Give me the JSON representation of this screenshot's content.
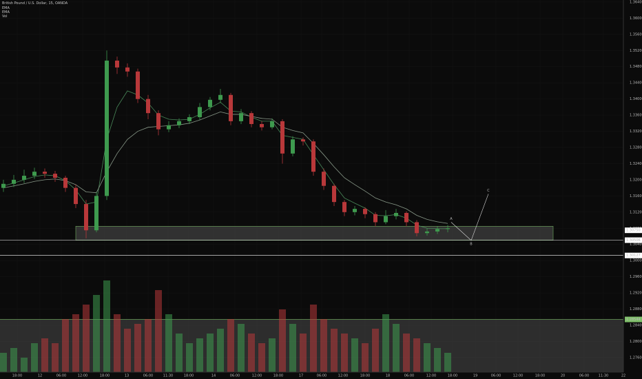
{
  "chart_data": {
    "type": "candlestick",
    "title": "British Pound / U.S. Dollar, 15, OANDA",
    "indicators": [
      "EMA",
      "EMA",
      "Vol"
    ],
    "open": [
      1.318,
      1.319,
      1.32,
      1.321,
      1.322,
      1.3215,
      1.3205,
      1.318,
      1.314,
      1.3075,
      1.316,
      1.3495,
      1.3478,
      1.3468,
      1.34,
      1.3365,
      1.3325,
      1.3335,
      1.3345,
      1.3355,
      1.338,
      1.3398,
      1.341,
      1.3345,
      1.3365,
      1.3338,
      1.333,
      1.3345,
      1.3265,
      1.33,
      1.3295,
      1.322,
      1.3185,
      1.3145,
      1.312,
      1.3128,
      1.3115,
      1.3095,
      1.311,
      1.3118,
      1.3095,
      1.3068,
      1.3072,
      1.3078
    ],
    "high": [
      1.32,
      1.3212,
      1.3225,
      1.323,
      1.3228,
      1.3222,
      1.321,
      1.3188,
      1.315,
      1.317,
      1.352,
      1.3505,
      1.3488,
      1.3475,
      1.341,
      1.3372,
      1.3345,
      1.3352,
      1.3362,
      1.339,
      1.3405,
      1.3425,
      1.3415,
      1.3375,
      1.337,
      1.3345,
      1.3352,
      1.335,
      1.3308,
      1.3305,
      1.33,
      1.3228,
      1.319,
      1.315,
      1.3135,
      1.3132,
      1.312,
      1.3125,
      1.3128,
      1.3122,
      1.31,
      1.308,
      1.3085,
      1.3088
    ],
    "low": [
      1.317,
      1.3182,
      1.3192,
      1.3202,
      1.3205,
      1.3195,
      1.317,
      1.313,
      1.3055,
      1.307,
      1.315,
      1.3462,
      1.3455,
      1.339,
      1.335,
      1.331,
      1.3318,
      1.3328,
      1.3338,
      1.3348,
      1.3372,
      1.339,
      1.3335,
      1.3338,
      1.333,
      1.3322,
      1.3325,
      1.324,
      1.3258,
      1.3285,
      1.321,
      1.3175,
      1.3135,
      1.311,
      1.3112,
      1.3105,
      1.3085,
      1.309,
      1.3102,
      1.3085,
      1.306,
      1.3062,
      1.3066,
      1.307
    ],
    "close": [
      1.319,
      1.32,
      1.321,
      1.322,
      1.3215,
      1.3205,
      1.318,
      1.314,
      1.3075,
      1.316,
      1.3495,
      1.3478,
      1.3468,
      1.34,
      1.3365,
      1.3325,
      1.3335,
      1.3345,
      1.3355,
      1.338,
      1.3398,
      1.341,
      1.3345,
      1.3365,
      1.3338,
      1.333,
      1.3345,
      1.3265,
      1.33,
      1.3295,
      1.322,
      1.3185,
      1.3145,
      1.312,
      1.3128,
      1.3115,
      1.3095,
      1.311,
      1.3118,
      1.3095,
      1.3068,
      1.3072,
      1.3078,
      1.308
    ],
    "volume": [
      20,
      25,
      15,
      30,
      35,
      30,
      55,
      60,
      70,
      80,
      95,
      60,
      45,
      50,
      55,
      85,
      60,
      40,
      30,
      35,
      40,
      45,
      55,
      50,
      40,
      30,
      35,
      65,
      50,
      40,
      70,
      55,
      45,
      40,
      35,
      30,
      45,
      60,
      50,
      40,
      35,
      30,
      25,
      20
    ],
    "series": [
      {
        "name": "EMA",
        "color": "#4a8a5a",
        "values": [
          1.3185,
          1.3192,
          1.32,
          1.3208,
          1.3212,
          1.321,
          1.3198,
          1.3175,
          1.314,
          1.3145,
          1.33,
          1.338,
          1.342,
          1.341,
          1.339,
          1.336,
          1.335,
          1.3348,
          1.335,
          1.3362,
          1.3378,
          1.3392,
          1.337,
          1.3368,
          1.3355,
          1.3345,
          1.3345,
          1.331,
          1.3305,
          1.33,
          1.3262,
          1.3225,
          1.3188,
          1.3155,
          1.3142,
          1.313,
          1.3112,
          1.3111,
          1.3114,
          1.3105,
          1.3088,
          1.308,
          1.3079,
          1.3079
        ]
      },
      {
        "name": "EMA",
        "color": "#8a9a8a",
        "values": [
          1.318,
          1.3185,
          1.319,
          1.3196,
          1.32,
          1.3202,
          1.3198,
          1.3188,
          1.317,
          1.3168,
          1.322,
          1.3265,
          1.33,
          1.332,
          1.333,
          1.3332,
          1.3334,
          1.3336,
          1.334,
          1.3348,
          1.3358,
          1.3368,
          1.3362,
          1.3362,
          1.3357,
          1.3352,
          1.335,
          1.333,
          1.3322,
          1.3316,
          1.329,
          1.3262,
          1.3232,
          1.3205,
          1.3188,
          1.3172,
          1.3155,
          1.3145,
          1.3138,
          1.3128,
          1.3112,
          1.3102,
          1.3096,
          1.3092
        ]
      }
    ],
    "up_color": "#3e9a4e",
    "down_color": "#b8383a",
    "ylim": [
      1.2724,
      1.3645
    ],
    "yticks": [
      {
        "value": 1.276,
        "label": "1.27600"
      },
      {
        "value": 1.28,
        "label": "1.28000"
      },
      {
        "value": 1.284,
        "label": "1.28400"
      },
      {
        "value": 1.288,
        "label": "1.28800"
      },
      {
        "value": 1.292,
        "label": "1.29200"
      },
      {
        "value": 1.296,
        "label": "1.29600"
      },
      {
        "value": 1.3,
        "label": "1.30000"
      },
      {
        "value": 1.304,
        "label": "1.30400"
      },
      {
        "value": 1.308,
        "label": "1.30800"
      },
      {
        "value": 1.312,
        "label": "1.31200"
      },
      {
        "value": 1.316,
        "label": "1.31600"
      },
      {
        "value": 1.32,
        "label": "1.32000"
      },
      {
        "value": 1.324,
        "label": "1.32400"
      },
      {
        "value": 1.328,
        "label": "1.32800"
      },
      {
        "value": 1.332,
        "label": "1.33200"
      },
      {
        "value": 1.336,
        "label": "1.33600"
      },
      {
        "value": 1.34,
        "label": "1.34000"
      },
      {
        "value": 1.344,
        "label": "1.34400"
      },
      {
        "value": 1.348,
        "label": "1.34800"
      },
      {
        "value": 1.352,
        "label": "1.35200"
      },
      {
        "value": 1.356,
        "label": "1.35600"
      },
      {
        "value": 1.36,
        "label": "1.36000"
      },
      {
        "value": 1.364,
        "label": "1.36400"
      }
    ],
    "xtick_labels": [
      "18:00",
      "12",
      "06:00",
      "12:00",
      "18:00",
      "13",
      "06:00",
      "11:30",
      "18:00",
      "14",
      "06:00",
      "12:00",
      "18:00",
      "17",
      "06:00",
      "12:00",
      "18:00",
      "18",
      "06:00",
      "12:00",
      "18:00",
      "19",
      "06:00",
      "12:00",
      "18:00",
      "20",
      "06:00",
      "11:30",
      "22"
    ],
    "zone": {
      "top": 1.3085,
      "bottom": 1.30506
    },
    "levels": [
      {
        "value": 1.3075,
        "label": "1.30750",
        "color": "#ffffff"
      },
      {
        "value": 1.30506,
        "label": "1.30506",
        "color": "#ffffff"
      },
      {
        "value": 1.30127,
        "label": "1.30127",
        "color": "#ffffff"
      },
      {
        "value": 1.28544,
        "label": "1.28544",
        "color": "#7fbf6a"
      }
    ],
    "wave": [
      {
        "label": "A",
        "value": 1.3095
      },
      {
        "label": "B",
        "value": 1.305
      },
      {
        "label": "C",
        "value": 1.3165
      }
    ]
  }
}
